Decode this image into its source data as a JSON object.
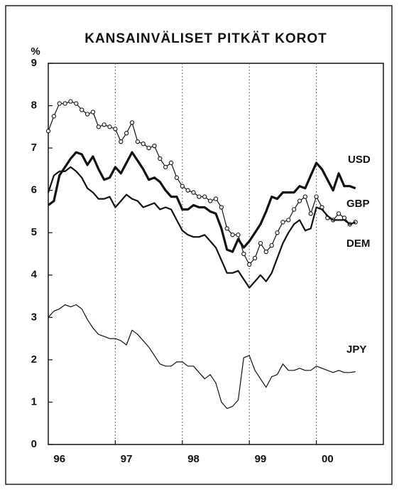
{
  "chart_data": {
    "type": "line",
    "title": "KANSAINVÄLISET PITKÄT KOROT",
    "y_label": "%",
    "x": [
      0,
      1,
      2,
      3,
      4,
      5,
      6,
      7,
      8,
      9,
      10,
      11,
      12,
      13,
      14,
      15,
      16,
      17,
      18,
      19,
      20,
      21,
      22,
      23,
      24,
      25,
      26,
      27,
      28,
      29,
      30,
      31,
      32,
      33,
      34,
      35,
      36,
      37,
      38,
      39,
      40,
      41,
      42,
      43,
      44,
      45,
      46,
      47,
      48,
      49,
      50,
      51,
      52,
      53,
      54,
      55
    ],
    "xlim": [
      0,
      60
    ],
    "xticks": [
      {
        "value": 2,
        "label": "96"
      },
      {
        "value": 14,
        "label": "97"
      },
      {
        "value": 26,
        "label": "98"
      },
      {
        "value": 38,
        "label": "99"
      },
      {
        "value": 50,
        "label": "00"
      }
    ],
    "xgrid": [
      12,
      24,
      36,
      48
    ],
    "ylim": [
      0,
      9
    ],
    "yticks": [
      0,
      1,
      2,
      3,
      4,
      5,
      6,
      7,
      8,
      9
    ],
    "series": [
      {
        "name": "USD",
        "color": "#111111",
        "width": 3.2,
        "marker": false,
        "values": [
          5.65,
          5.75,
          6.35,
          6.55,
          6.75,
          6.9,
          6.85,
          6.6,
          6.8,
          6.5,
          6.25,
          6.3,
          6.55,
          6.4,
          6.65,
          6.9,
          6.7,
          6.5,
          6.25,
          6.3,
          6.2,
          6.0,
          5.85,
          5.85,
          5.55,
          5.55,
          5.65,
          5.6,
          5.6,
          5.5,
          5.45,
          5.1,
          4.6,
          4.55,
          4.85,
          4.65,
          4.8,
          5.0,
          5.2,
          5.5,
          5.85,
          5.8,
          5.95,
          5.95,
          5.95,
          6.1,
          6.05,
          6.35,
          6.65,
          6.5,
          6.25,
          6.0,
          6.4,
          6.1,
          6.1,
          6.05
        ]
      },
      {
        "name": "GBP",
        "color": "#111111",
        "width": 1.2,
        "marker": true,
        "values": [
          7.4,
          7.75,
          8.05,
          8.05,
          8.1,
          8.05,
          7.9,
          7.8,
          7.85,
          7.5,
          7.55,
          7.5,
          7.45,
          7.15,
          7.35,
          7.6,
          7.15,
          7.1,
          7.0,
          7.05,
          6.75,
          6.55,
          6.65,
          6.3,
          6.1,
          6.0,
          5.95,
          5.85,
          5.85,
          5.75,
          5.8,
          5.6,
          5.1,
          4.95,
          4.95,
          4.5,
          4.25,
          4.4,
          4.75,
          4.55,
          4.7,
          5.0,
          5.25,
          5.3,
          5.55,
          5.75,
          5.85,
          5.45,
          5.85,
          5.6,
          5.35,
          5.3,
          5.45,
          5.35,
          5.2,
          5.25
        ]
      },
      {
        "name": "DEM",
        "color": "#111111",
        "width": 2.2,
        "marker": false,
        "values": [
          5.95,
          6.35,
          6.45,
          6.45,
          6.55,
          6.45,
          6.3,
          6.05,
          5.95,
          5.8,
          5.8,
          5.85,
          5.6,
          5.75,
          5.9,
          5.8,
          5.75,
          5.6,
          5.65,
          5.7,
          5.55,
          5.6,
          5.55,
          5.3,
          5.05,
          4.95,
          4.9,
          4.9,
          4.95,
          4.8,
          4.65,
          4.35,
          4.05,
          4.05,
          4.1,
          3.9,
          3.7,
          3.85,
          4.0,
          3.85,
          4.05,
          4.4,
          4.75,
          5.0,
          5.2,
          5.3,
          5.05,
          5.1,
          5.6,
          5.55,
          5.4,
          5.3,
          5.3,
          5.3,
          5.2,
          5.25
        ]
      },
      {
        "name": "JPY",
        "color": "#111111",
        "width": 1.2,
        "marker": false,
        "values": [
          3.0,
          3.15,
          3.2,
          3.3,
          3.25,
          3.3,
          3.2,
          2.95,
          2.75,
          2.6,
          2.55,
          2.5,
          2.5,
          2.45,
          2.35,
          2.7,
          2.6,
          2.45,
          2.3,
          2.1,
          1.9,
          1.85,
          1.85,
          1.95,
          1.95,
          1.85,
          1.85,
          1.7,
          1.55,
          1.65,
          1.45,
          1.0,
          0.85,
          0.9,
          1.05,
          2.05,
          2.1,
          1.75,
          1.55,
          1.35,
          1.6,
          1.65,
          1.9,
          1.75,
          1.75,
          1.8,
          1.75,
          1.75,
          1.85,
          1.8,
          1.75,
          1.7,
          1.75,
          1.7,
          1.7,
          1.72
        ]
      }
    ]
  }
}
